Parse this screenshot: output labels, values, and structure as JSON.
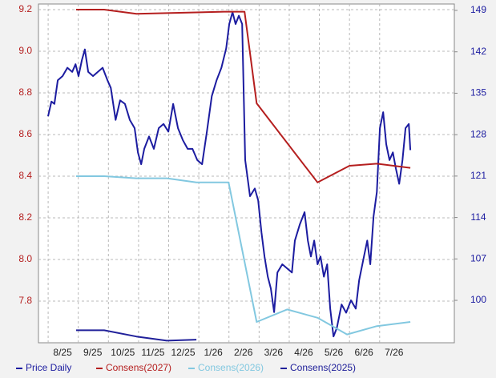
{
  "chart_data": {
    "type": "line",
    "xticks": [
      {
        "value": 0,
        "label": "8/25"
      },
      {
        "value": 1,
        "label": "9/25"
      },
      {
        "value": 2,
        "label": "10/25"
      },
      {
        "value": 3,
        "label": "11/25"
      },
      {
        "value": 4,
        "label": "12/25"
      },
      {
        "value": 5,
        "label": "1/26"
      },
      {
        "value": 6,
        "label": "2/26"
      },
      {
        "value": 7,
        "label": "3/26"
      },
      {
        "value": 8,
        "label": "4/26"
      },
      {
        "value": 9,
        "label": "5/26"
      },
      {
        "value": 10,
        "label": "6/26"
      },
      {
        "value": 11,
        "label": "7/26"
      }
    ],
    "xlim": [
      -0.8,
      13.0
    ],
    "ylim": [
      7.6,
      9.227
    ],
    "yticks": [
      7.8,
      {
        "value": 8,
        "label": "8.0"
      },
      8.2,
      8.4,
      8.6,
      8.8,
      {
        "value": 9,
        "label": "9.0"
      },
      9.2
    ],
    "y2lim": [
      92.83,
      150.08
    ],
    "y2ticks": [
      100,
      107,
      114,
      121,
      128,
      135,
      142,
      149
    ],
    "grid": true,
    "legend": "bottom",
    "series": [
      {
        "name": "Price Daily",
        "color": "#1c1ca0",
        "axis": "y2",
        "x": [
          -0.48,
          -0.37,
          -0.27,
          -0.16,
          0,
          0.16,
          0.32,
          0.43,
          0.53,
          0.64,
          0.74,
          0.85,
          1.01,
          1.17,
          1.33,
          1.49,
          1.6,
          1.76,
          1.91,
          2.07,
          2.23,
          2.39,
          2.5,
          2.61,
          2.71,
          2.87,
          3.03,
          3.19,
          3.35,
          3.51,
          3.67,
          3.83,
          3.99,
          4.15,
          4.31,
          4.47,
          4.63,
          4.79,
          4.95,
          5.11,
          5.27,
          5.43,
          5.53,
          5.64,
          5.74,
          5.85,
          5.96,
          6.06,
          6.22,
          6.38,
          6.49,
          6.6,
          6.7,
          6.81,
          6.91,
          7.02,
          7.13,
          7.29,
          7.45,
          7.61,
          7.71,
          7.87,
          8.03,
          8.14,
          8.24,
          8.35,
          8.46,
          8.56,
          8.67,
          8.78,
          8.88,
          8.99,
          9.1,
          9.26,
          9.41,
          9.57,
          9.73,
          9.84,
          10,
          10.11,
          10.21,
          10.32,
          10.43,
          10.53,
          10.64,
          10.74,
          10.85,
          10.96,
          11.06,
          11.17,
          11.28,
          11.38,
          11.49,
          11.54
        ],
        "values": [
          131.1,
          133.6,
          133.2,
          137.2,
          137.9,
          139.3,
          138.6,
          139.9,
          137.9,
          140.6,
          142.4,
          138.6,
          137.9,
          138.6,
          139.3,
          137.2,
          135.9,
          130.5,
          133.8,
          133.2,
          130.5,
          129.1,
          125.0,
          123.0,
          125.6,
          127.7,
          125.6,
          129.1,
          129.8,
          128.5,
          133.2,
          129.1,
          127.1,
          125.6,
          125.6,
          123.7,
          123.0,
          128.5,
          134.5,
          137.2,
          139.3,
          142.6,
          146.7,
          148.7,
          146.7,
          148.1,
          146.7,
          123.7,
          117.6,
          118.9,
          116.9,
          111.5,
          107.4,
          104.0,
          102.0,
          98.0,
          104.7,
          106.1,
          105.4,
          104.7,
          110.1,
          112.8,
          114.9,
          110.1,
          107.4,
          110.1,
          106.1,
          107.4,
          104.0,
          106.1,
          98.6,
          93.9,
          95.3,
          99.3,
          97.9,
          100.0,
          98.6,
          103.4,
          107.4,
          110.1,
          106.1,
          114.2,
          118.3,
          129.1,
          131.8,
          126.4,
          123.7,
          125.0,
          122.3,
          119.7,
          123.7,
          129.1,
          129.8,
          125.4
        ]
      },
      {
        "name": "Consens(2027)",
        "color": "#b51f1f",
        "x": [
          0.45,
          1.38,
          2.45,
          5.37,
          6.04,
          6.44,
          8.46,
          9.52,
          10.43,
          11.54
        ],
        "values": [
          9.2,
          9.2,
          9.18,
          9.19,
          9.19,
          8.75,
          8.37,
          8.45,
          8.46,
          8.44
        ]
      },
      {
        "name": "Consens(2026)",
        "color": "#82c8e0",
        "x": [
          0.45,
          1.38,
          2.45,
          3.46,
          4.44,
          5.51,
          6.44,
          7.45,
          8.46,
          9.44,
          10.43,
          11.54
        ],
        "values": [
          8.4,
          8.4,
          8.39,
          8.39,
          8.37,
          8.37,
          7.7,
          7.76,
          7.72,
          7.64,
          7.68,
          7.7
        ]
      },
      {
        "name": "Consens(2025)",
        "color": "#20209a",
        "x": [
          0.45,
          1.38,
          2.45,
          3.46,
          4.44
        ],
        "values": [
          7.66,
          7.66,
          7.63,
          7.61,
          7.615
        ]
      }
    ]
  }
}
